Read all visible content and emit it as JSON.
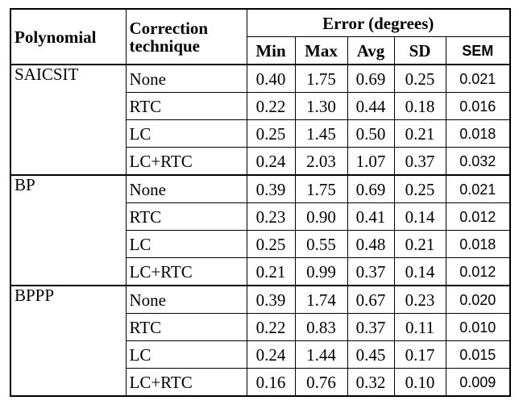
{
  "header": {
    "polynomial": "Polynomial",
    "correction": "Correction technique",
    "error": "Error (degrees)",
    "columns": [
      "Min",
      "Max",
      "Avg",
      "SD",
      "SEM"
    ]
  },
  "groups": [
    {
      "polynomial": "SAICSIT",
      "rows": [
        {
          "technique": "None",
          "values": [
            "0.40",
            "1.75",
            "0.69",
            "0.25",
            "0.021"
          ]
        },
        {
          "technique": "RTC",
          "values": [
            "0.22",
            "1.30",
            "0.44",
            "0.18",
            "0.016"
          ]
        },
        {
          "technique": "LC",
          "values": [
            "0.25",
            "1.45",
            "0.50",
            "0.21",
            "0.018"
          ]
        },
        {
          "technique": "LC+RTC",
          "values": [
            "0.24",
            "2.03",
            "1.07",
            "0.37",
            "0.032"
          ]
        }
      ]
    },
    {
      "polynomial": "BP",
      "rows": [
        {
          "technique": "None",
          "values": [
            "0.39",
            "1.75",
            "0.69",
            "0.25",
            "0.021"
          ]
        },
        {
          "technique": "RTC",
          "values": [
            "0.23",
            "0.90",
            "0.41",
            "0.14",
            "0.012"
          ]
        },
        {
          "technique": "LC",
          "values": [
            "0.25",
            "0.55",
            "0.48",
            "0.21",
            "0.018"
          ]
        },
        {
          "technique": "LC+RTC",
          "values": [
            "0.21",
            "0.99",
            "0.37",
            "0.14",
            "0.012"
          ]
        }
      ]
    },
    {
      "polynomial": "BPPP",
      "rows": [
        {
          "technique": "None",
          "values": [
            "0.39",
            "1.74",
            "0.67",
            "0.23",
            "0.020"
          ]
        },
        {
          "technique": "RTC",
          "values": [
            "0.22",
            "0.83",
            "0.37",
            "0.11",
            "0.010"
          ]
        },
        {
          "technique": "LC",
          "values": [
            "0.24",
            "1.44",
            "0.45",
            "0.17",
            "0.015"
          ]
        },
        {
          "technique": "LC+RTC",
          "values": [
            "0.16",
            "0.76",
            "0.32",
            "0.10",
            "0.009"
          ]
        }
      ]
    }
  ]
}
